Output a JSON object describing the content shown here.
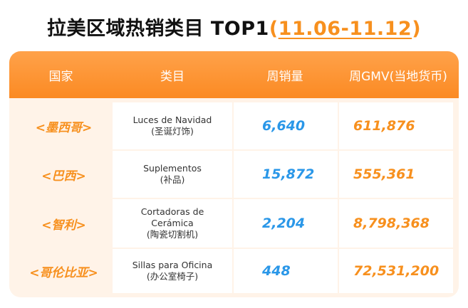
{
  "title": {
    "main": "拉美区域热销类目 TOP1",
    "range_open": "(",
    "range": "11.06-11.12",
    "range_close": ")"
  },
  "table": {
    "headers": [
      "国家",
      "类目",
      "周销量",
      "周GMV(当地货币)"
    ],
    "rows": [
      {
        "country": "<墨西哥>",
        "category_es": [
          "Luces de Navidad"
        ],
        "category_zh": "(圣诞灯饰)",
        "weekly_sales": "6,640",
        "weekly_gmv": "611,876"
      },
      {
        "country": "<巴西>",
        "category_es": [
          "Suplementos"
        ],
        "category_zh": "(补品)",
        "weekly_sales": "15,872",
        "weekly_gmv": "555,361"
      },
      {
        "country": "<智利>",
        "category_es": [
          "Cortadoras de",
          "Cerámica"
        ],
        "category_zh": "(陶瓷切割机)",
        "weekly_sales": "2,204",
        "weekly_gmv": "8,798,368"
      },
      {
        "country": "<哥伦比亚>",
        "category_es": [
          "Sillas para Oficina"
        ],
        "category_zh": "(办公室椅子)",
        "weekly_sales": "448",
        "weekly_gmv": "72,531,200"
      }
    ]
  },
  "colors": {
    "accent": "#f7901e",
    "header_bg": "#fb8a23",
    "sales_blue": "#2a97e8",
    "card_bg": "#fff3e8"
  }
}
